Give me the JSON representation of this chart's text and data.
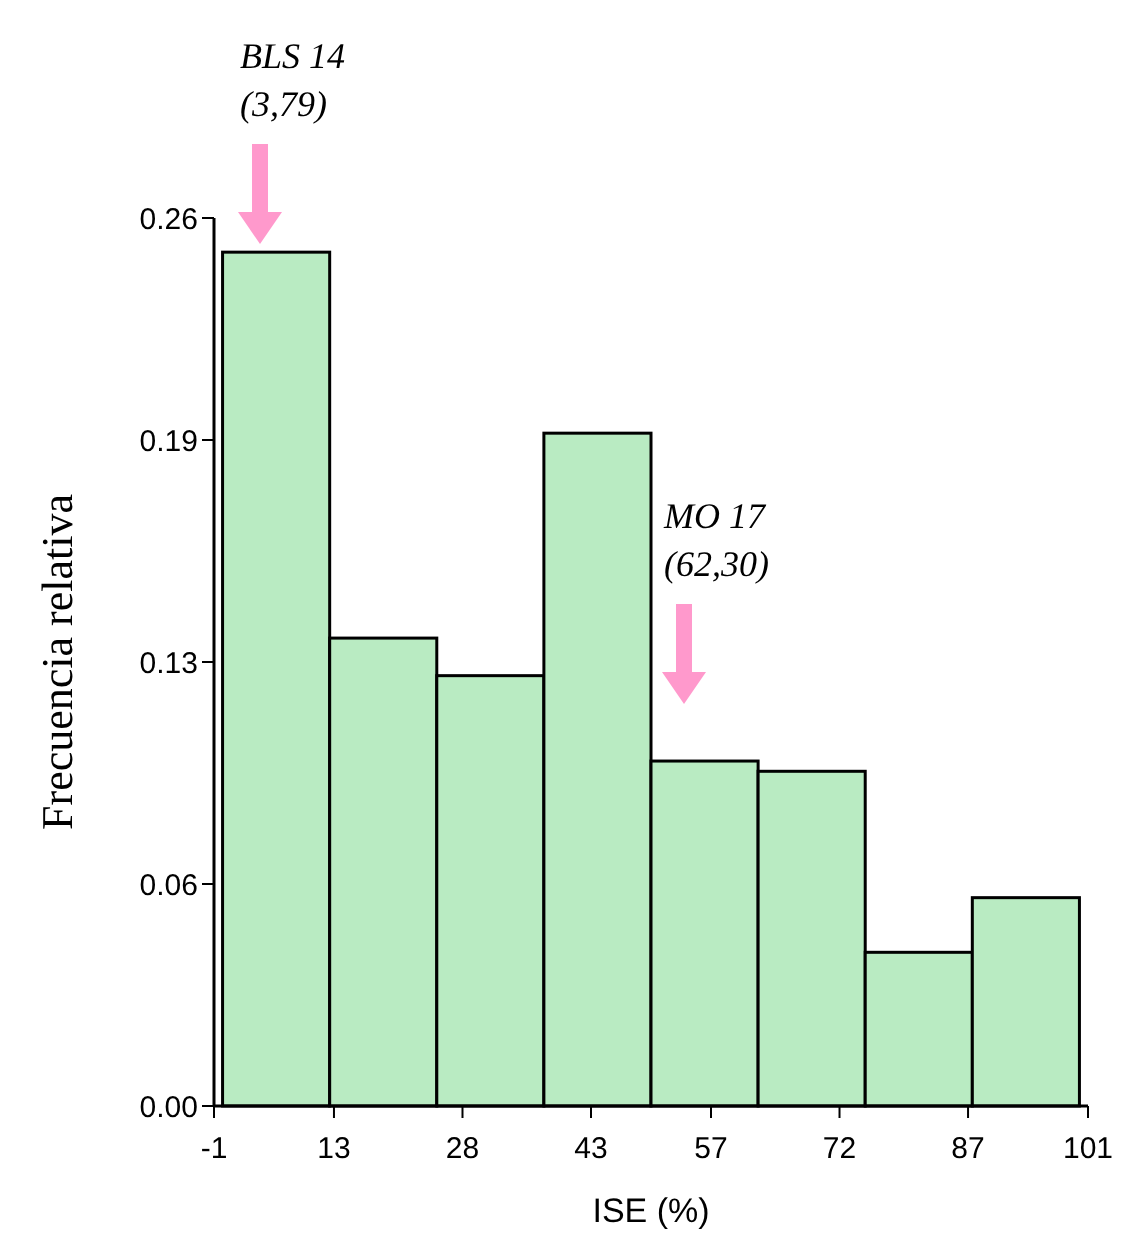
{
  "chart_data": {
    "type": "histogram",
    "xlabel": "ISE (%)",
    "ylabel": "Frecuencia relativa",
    "bins": [
      0,
      12.5,
      25,
      37.5,
      50,
      62.5,
      75,
      87.5,
      100
    ],
    "values": [
      0.25,
      0.137,
      0.126,
      0.197,
      0.101,
      0.098,
      0.045,
      0.061
    ],
    "color": "#b9ebc2",
    "xlim": [
      -1,
      101
    ],
    "xticks": [
      -1,
      13,
      28,
      43,
      57,
      72,
      87,
      101
    ],
    "ylim": [
      0,
      0.26
    ],
    "yticks": [
      {
        "value": 0,
        "label": "0.00"
      },
      {
        "value": 0.065,
        "label": "0.06"
      },
      {
        "value": 0.13,
        "label": "0.13"
      },
      {
        "value": 0.195,
        "label": "0.19"
      },
      {
        "value": 0.26,
        "label": "0.26"
      }
    ],
    "annotations": [
      "BLS 14\n(3,79)",
      "MO 17\n(62,30)"
    ],
    "grid": false
  }
}
